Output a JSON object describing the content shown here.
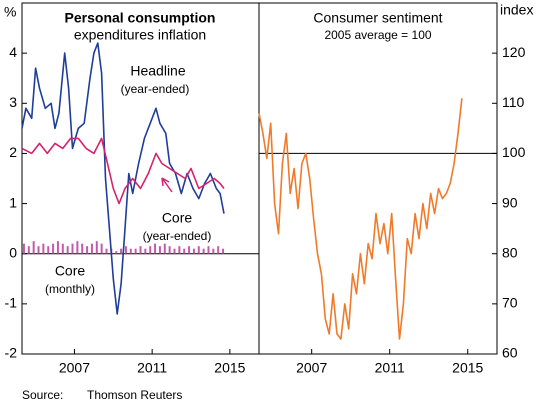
{
  "chart_data": [
    {
      "type": "line",
      "title": "Personal consumption",
      "subtitle": "expenditures inflation",
      "ylabel": "%",
      "ytick_side": "left",
      "xlim": [
        2004.3,
        2016.5
      ],
      "xticks": [
        2007,
        2011,
        2015
      ],
      "ylim": [
        -2,
        5
      ],
      "yticks": [
        -2,
        -1,
        0,
        1,
        2,
        3,
        4
      ],
      "reference_line": 0,
      "series": [
        {
          "name": "Core",
          "label_lines": [
            "Core",
            "(monthly)"
          ],
          "kind": "bar",
          "color": "#c45aa8",
          "x": [
            2004.4,
            2004.65,
            2004.9,
            2005.15,
            2005.4,
            2005.65,
            2005.9,
            2006.15,
            2006.4,
            2006.65,
            2006.9,
            2007.15,
            2007.4,
            2007.65,
            2007.9,
            2008.15,
            2008.4,
            2008.65,
            2008.9,
            2009.15,
            2009.4,
            2009.65,
            2009.9,
            2010.15,
            2010.4,
            2010.65,
            2010.9,
            2011.15,
            2011.4,
            2011.65,
            2011.9,
            2012.15,
            2012.4,
            2012.65,
            2012.9,
            2013.15,
            2013.4,
            2013.65,
            2013.9,
            2014.15,
            2014.4,
            2014.65
          ],
          "values": [
            0.2,
            0.15,
            0.25,
            0.15,
            0.2,
            0.15,
            0.2,
            0.25,
            0.2,
            0.15,
            0.2,
            0.25,
            0.2,
            0.15,
            0.2,
            0.25,
            0.2,
            0.1,
            0.1,
            0.05,
            0.1,
            0.15,
            0.1,
            0.1,
            0.15,
            0.1,
            0.15,
            0.2,
            0.15,
            0.2,
            0.15,
            0.1,
            0.15,
            0.1,
            0.15,
            0.1,
            0.15,
            0.1,
            0.15,
            0.1,
            0.15,
            0.1
          ]
        },
        {
          "name": "Headline",
          "label_lines": [
            "Headline",
            "(year-ended)"
          ],
          "color": "#1f3d99",
          "x": [
            2004.3,
            2004.5,
            2004.8,
            2005.0,
            2005.2,
            2005.5,
            2005.8,
            2006.0,
            2006.2,
            2006.5,
            2006.7,
            2006.9,
            2007.2,
            2007.5,
            2007.8,
            2008.0,
            2008.2,
            2008.4,
            2008.6,
            2008.8,
            2009.0,
            2009.2,
            2009.4,
            2009.6,
            2009.8,
            2010.0,
            2010.3,
            2010.6,
            2010.9,
            2011.2,
            2011.4,
            2011.7,
            2011.9,
            2012.2,
            2012.5,
            2012.8,
            2013.1,
            2013.4,
            2013.7,
            2014.0,
            2014.3,
            2014.5,
            2014.7
          ],
          "values": [
            2.5,
            2.9,
            2.7,
            3.7,
            3.3,
            2.9,
            3.0,
            2.5,
            2.8,
            4.0,
            3.3,
            2.1,
            2.5,
            2.6,
            3.5,
            4.0,
            4.2,
            3.6,
            1.5,
            0.5,
            -0.5,
            -1.2,
            -0.6,
            0.5,
            1.6,
            1.2,
            1.8,
            2.3,
            2.6,
            2.9,
            2.6,
            2.4,
            1.8,
            1.6,
            1.2,
            1.6,
            1.3,
            1.1,
            1.4,
            1.6,
            1.3,
            1.2,
            0.8
          ]
        },
        {
          "name": "Core",
          "label_lines": [
            "Core",
            "(year-ended)"
          ],
          "color": "#d4226f",
          "x": [
            2004.3,
            2004.8,
            2005.2,
            2005.6,
            2006.0,
            2006.4,
            2006.8,
            2007.2,
            2007.6,
            2008.0,
            2008.4,
            2008.7,
            2009.0,
            2009.3,
            2009.6,
            2010.0,
            2010.4,
            2010.8,
            2011.2,
            2011.5,
            2011.9,
            2012.3,
            2012.7,
            2013.0,
            2013.4,
            2013.8,
            2014.2,
            2014.5,
            2014.7
          ],
          "values": [
            2.1,
            2.0,
            2.2,
            2.0,
            2.2,
            2.1,
            2.3,
            2.3,
            2.1,
            2.0,
            2.3,
            1.8,
            1.3,
            1.0,
            1.3,
            1.5,
            1.3,
            1.6,
            2.0,
            1.8,
            1.7,
            1.6,
            1.5,
            1.7,
            1.3,
            1.4,
            1.5,
            1.4,
            1.3
          ]
        }
      ]
    },
    {
      "type": "line",
      "title": "Consumer sentiment",
      "subtitle": "2005 average = 100",
      "ylabel": "index",
      "ytick_side": "right",
      "xlim": [
        2004.3,
        2016.5
      ],
      "xticks": [
        2007,
        2011,
        2015
      ],
      "ylim": [
        60,
        130
      ],
      "yticks": [
        60,
        70,
        80,
        90,
        100,
        110,
        120
      ],
      "reference_line": 100,
      "series": [
        {
          "name": "Consumer sentiment",
          "color": "#f07a2a",
          "x": [
            2004.3,
            2004.5,
            2004.7,
            2004.9,
            2005.1,
            2005.3,
            2005.5,
            2005.7,
            2005.9,
            2006.1,
            2006.3,
            2006.5,
            2006.7,
            2006.9,
            2007.1,
            2007.3,
            2007.5,
            2007.7,
            2007.9,
            2008.1,
            2008.3,
            2008.5,
            2008.7,
            2008.9,
            2009.1,
            2009.3,
            2009.5,
            2009.7,
            2009.9,
            2010.1,
            2010.3,
            2010.5,
            2010.7,
            2010.9,
            2011.1,
            2011.3,
            2011.5,
            2011.7,
            2011.9,
            2012.1,
            2012.3,
            2012.5,
            2012.7,
            2012.9,
            2013.1,
            2013.3,
            2013.5,
            2013.7,
            2013.9,
            2014.1,
            2014.3,
            2014.5,
            2014.7
          ],
          "values": [
            108,
            104,
            99,
            106,
            90,
            84,
            98,
            104,
            92,
            97,
            89,
            98,
            100,
            95,
            87,
            80,
            76,
            67,
            64,
            72,
            64,
            63,
            70,
            65,
            76,
            72,
            80,
            74,
            82,
            79,
            88,
            82,
            86,
            80,
            88,
            75,
            63,
            70,
            83,
            80,
            88,
            83,
            90,
            85,
            92,
            88,
            93,
            91,
            92,
            94,
            98,
            104,
            111
          ]
        }
      ]
    }
  ],
  "source": {
    "label": "Source:",
    "text": "Thomson Reuters"
  }
}
